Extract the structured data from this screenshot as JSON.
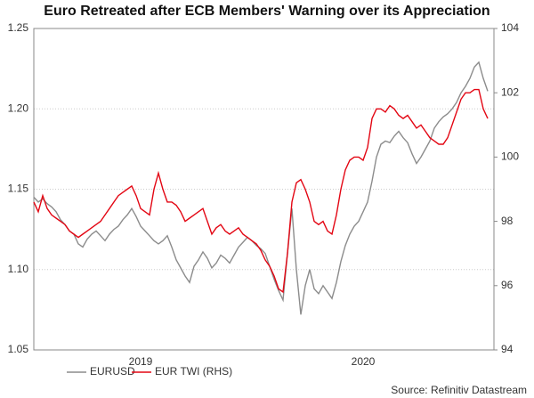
{
  "chart_data": {
    "type": "line",
    "title": "Euro Retreated after ECB Members' Warning over its Appreciation",
    "source": "Source: Refinitiv Datastream",
    "categories": [
      null,
      null,
      null,
      null,
      null,
      null,
      null,
      null,
      null,
      null,
      null,
      null,
      null,
      null,
      null,
      null,
      null,
      null,
      null,
      null,
      null,
      null,
      null,
      null,
      "2019",
      null,
      null,
      null,
      null,
      null,
      null,
      null,
      null,
      null,
      null,
      null,
      null,
      null,
      null,
      null,
      null,
      null,
      null,
      null,
      null,
      null,
      null,
      null,
      null,
      null,
      null,
      null,
      null,
      null,
      null,
      null,
      null,
      null,
      null,
      null,
      null,
      null,
      null,
      null,
      null,
      null,
      null,
      null,
      null,
      null,
      null,
      null,
      null,
      null,
      "2020",
      null,
      null,
      null,
      null,
      null,
      null,
      null,
      null,
      null,
      null,
      null,
      null,
      null,
      null,
      null,
      null,
      null,
      null,
      null,
      null,
      null,
      null,
      null,
      null,
      null,
      null,
      null,
      null
    ],
    "series": [
      {
        "name": "EURUSD",
        "color": "#8c8c8c",
        "values": [
          1.145,
          1.142,
          1.144,
          1.141,
          1.139,
          1.136,
          1.131,
          1.128,
          1.124,
          1.122,
          1.116,
          1.114,
          1.119,
          1.122,
          1.124,
          1.121,
          1.118,
          1.122,
          1.125,
          1.127,
          1.131,
          1.134,
          1.138,
          1.133,
          1.127,
          1.124,
          1.121,
          1.118,
          1.116,
          1.118,
          1.121,
          1.114,
          1.106,
          1.101,
          1.096,
          1.092,
          1.102,
          1.106,
          1.111,
          1.107,
          1.101,
          1.104,
          1.109,
          1.107,
          1.104,
          1.109,
          1.114,
          1.117,
          1.12,
          1.118,
          1.115,
          1.113,
          1.11,
          1.102,
          1.094,
          1.087,
          1.081,
          1.11,
          1.138,
          1.1,
          1.072,
          1.09,
          1.1,
          1.088,
          1.085,
          1.09,
          1.086,
          1.082,
          1.092,
          1.105,
          1.115,
          1.122,
          1.127,
          1.13,
          1.136,
          1.142,
          1.155,
          1.17,
          1.178,
          1.18,
          1.179,
          1.183,
          1.186,
          1.182,
          1.179,
          1.172,
          1.166,
          1.17,
          1.175,
          1.18,
          1.188,
          1.192,
          1.195,
          1.197,
          1.2,
          1.204,
          1.21,
          1.214,
          1.219,
          1.226,
          1.229,
          1.219,
          1.211
        ]
      },
      {
        "name": "EUR TWI (RHS)",
        "color": "#e30613",
        "axis": "y2",
        "values": [
          98.6,
          98.3,
          98.8,
          98.4,
          98.2,
          98.1,
          98.0,
          97.9,
          97.7,
          97.6,
          97.5,
          97.6,
          97.7,
          97.8,
          97.9,
          98.0,
          98.2,
          98.4,
          98.6,
          98.8,
          98.9,
          99.0,
          99.1,
          98.8,
          98.4,
          98.3,
          98.2,
          99.0,
          99.5,
          99.0,
          98.6,
          98.6,
          98.5,
          98.3,
          98.0,
          98.1,
          98.2,
          98.3,
          98.4,
          98.0,
          97.6,
          97.8,
          97.9,
          97.7,
          97.6,
          97.7,
          97.8,
          97.6,
          97.5,
          97.4,
          97.3,
          97.1,
          96.8,
          96.6,
          96.3,
          95.9,
          95.8,
          97.0,
          98.6,
          99.2,
          99.3,
          99.0,
          98.6,
          98.0,
          97.9,
          98.0,
          97.7,
          97.6,
          98.2,
          99.0,
          99.6,
          99.9,
          100.0,
          100.0,
          99.9,
          100.3,
          101.2,
          101.5,
          101.5,
          101.4,
          101.6,
          101.5,
          101.3,
          101.2,
          101.3,
          101.1,
          100.9,
          101.0,
          100.8,
          100.6,
          100.5,
          100.4,
          100.4,
          100.6,
          101.0,
          101.4,
          101.8,
          102.0,
          102.0,
          102.1,
          102.1,
          101.5,
          101.2
        ]
      }
    ],
    "ylim": [
      1.05,
      1.25
    ],
    "yticks": [
      {
        "value": 1.05,
        "label": "1.05"
      },
      {
        "value": 1.1,
        "label": "1.10"
      },
      {
        "value": 1.15,
        "label": "1.15"
      },
      {
        "value": 1.2,
        "label": "1.20"
      },
      {
        "value": 1.25,
        "label": "1.25"
      }
    ],
    "y2lim": [
      94,
      104
    ],
    "y2ticks": [
      94,
      96,
      98,
      100,
      102,
      104
    ],
    "grid": true,
    "legend": "bottom"
  }
}
